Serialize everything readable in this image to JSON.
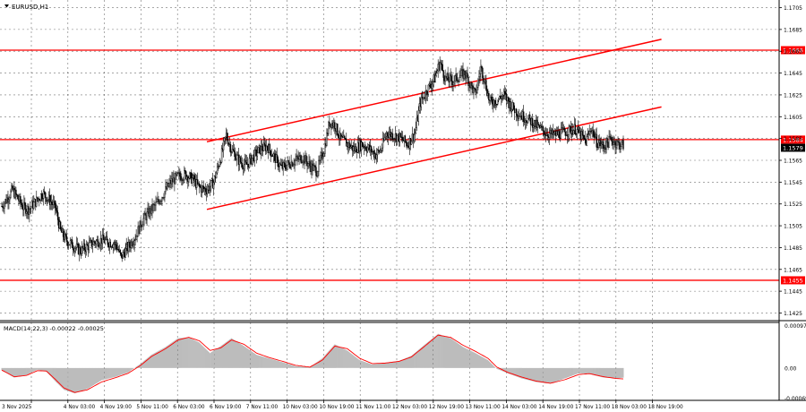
{
  "chart_data": {
    "type": "candlestick",
    "symbol": "EURUSD,H1",
    "price_axis": {
      "ticks": [
        "1.1705",
        "1.1685",
        "1.1665",
        "1.1645",
        "1.1625",
        "1.1605",
        "1.1585",
        "1.1565",
        "1.1545",
        "1.1525",
        "1.1505",
        "1.1485",
        "1.1465",
        "1.1445",
        "1.1425"
      ],
      "range": [
        1.1418,
        1.1712
      ]
    },
    "time_axis": {
      "labels": [
        "3 Nov 2025",
        "4 Nov 03:00",
        "4 Nov 19:00",
        "5 Nov 11:00",
        "6 Nov 03:00",
        "6 Nov 19:00",
        "7 Nov 11:00",
        "10 Nov 03:00",
        "10 Nov 19:00",
        "11 Nov 11:00",
        "12 Nov 03:00",
        "12 Nov 19:00",
        "13 Nov 11:00",
        "14 Nov 03:00",
        "14 Nov 19:00",
        "17 Nov 11:00",
        "18 Nov 03:00",
        "18 Nov 19:00"
      ]
    },
    "price_levels": [
      {
        "value": 1.1666,
        "label": "1.1666",
        "color": "#ff0000"
      },
      {
        "value": 1.1584,
        "label": "1.1584",
        "color": "#ff0000"
      },
      {
        "value": 1.1455,
        "label": "1.1455",
        "color": "#ff0000"
      }
    ],
    "current_price": {
      "value": 1.1579,
      "label": "1.1579"
    },
    "channel": {
      "upper": {
        "from": {
          "time": "6 Nov 19:00",
          "price": 1.1582
        },
        "to": {
          "time": "18 Nov 19:00",
          "price": 1.1676
        }
      },
      "lower": {
        "from": {
          "time": "6 Nov 19:00",
          "price": 1.152
        },
        "to": {
          "time": "18 Nov 19:00",
          "price": 1.1614
        }
      }
    },
    "close_path": [
      [
        0,
        1.1523
      ],
      [
        6,
        1.153
      ],
      [
        12,
        1.1538
      ],
      [
        18,
        1.153
      ],
      [
        24,
        1.1522
      ],
      [
        30,
        1.152
      ],
      [
        38,
        1.1527
      ],
      [
        46,
        1.1535
      ],
      [
        54,
        1.1528
      ],
      [
        60,
        1.1522
      ],
      [
        66,
        1.15
      ],
      [
        72,
        1.1492
      ],
      [
        80,
        1.1487
      ],
      [
        88,
        1.1482
      ],
      [
        96,
        1.1486
      ],
      [
        104,
        1.149
      ],
      [
        112,
        1.1492
      ],
      [
        120,
        1.149
      ],
      [
        128,
        1.1488
      ],
      [
        134,
        1.1476
      ],
      [
        142,
        1.1486
      ],
      [
        150,
        1.1495
      ],
      [
        158,
        1.151
      ],
      [
        166,
        1.1518
      ],
      [
        174,
        1.1525
      ],
      [
        182,
        1.1535
      ],
      [
        190,
        1.1545
      ],
      [
        198,
        1.155
      ],
      [
        206,
        1.1552
      ],
      [
        214,
        1.1548
      ],
      [
        222,
        1.154
      ],
      [
        230,
        1.1538
      ],
      [
        238,
        1.1545
      ],
      [
        246,
        1.1568
      ],
      [
        252,
        1.1588
      ],
      [
        258,
        1.1575
      ],
      [
        266,
        1.1565
      ],
      [
        274,
        1.156
      ],
      [
        282,
        1.1568
      ],
      [
        290,
        1.1575
      ],
      [
        298,
        1.1578
      ],
      [
        306,
        1.1568
      ],
      [
        314,
        1.1558
      ],
      [
        322,
        1.1562
      ],
      [
        330,
        1.1565
      ],
      [
        338,
        1.1568
      ],
      [
        346,
        1.156
      ],
      [
        354,
        1.1555
      ],
      [
        362,
        1.1575
      ],
      [
        368,
        1.16
      ],
      [
        374,
        1.1598
      ],
      [
        380,
        1.1585
      ],
      [
        388,
        1.158
      ],
      [
        396,
        1.1575
      ],
      [
        404,
        1.158
      ],
      [
        412,
        1.1576
      ],
      [
        420,
        1.157
      ],
      [
        426,
        1.1575
      ],
      [
        432,
        1.159
      ],
      [
        440,
        1.1588
      ],
      [
        448,
        1.1585
      ],
      [
        456,
        1.158
      ],
      [
        464,
        1.159
      ],
      [
        470,
        1.1618
      ],
      [
        478,
        1.163
      ],
      [
        486,
        1.164
      ],
      [
        492,
        1.1655
      ],
      [
        498,
        1.164
      ],
      [
        506,
        1.1638
      ],
      [
        514,
        1.1642
      ],
      [
        520,
        1.1645
      ],
      [
        526,
        1.1635
      ],
      [
        532,
        1.1625
      ],
      [
        538,
        1.165
      ],
      [
        542,
        1.164
      ],
      [
        548,
        1.1618
      ],
      [
        556,
        1.162
      ],
      [
        564,
        1.1625
      ],
      [
        572,
        1.1615
      ],
      [
        580,
        1.1608
      ],
      [
        588,
        1.1604
      ],
      [
        596,
        1.16
      ],
      [
        604,
        1.1594
      ],
      [
        612,
        1.159
      ],
      [
        620,
        1.1588
      ],
      [
        628,
        1.159
      ],
      [
        636,
        1.1592
      ],
      [
        644,
        1.1594
      ],
      [
        650,
        1.1588
      ],
      [
        656,
        1.1582
      ],
      [
        662,
        1.1595
      ],
      [
        668,
        1.1582
      ],
      [
        676,
        1.1578
      ],
      [
        684,
        1.1584
      ],
      [
        692,
        1.158
      ],
      [
        698,
        1.1579
      ]
    ],
    "macd": {
      "label": "MACD(14,22,3) -0.00022 -0.00025",
      "ticks": [
        "0.00097",
        "0.00",
        "-0.00069"
      ],
      "range": [
        -0.00074,
        0.00104
      ],
      "histogram_path": [
        [
          0,
          -5e-05
        ],
        [
          14,
          -0.00022
        ],
        [
          28,
          -0.00016
        ],
        [
          40,
          -4e-05
        ],
        [
          50,
          -8e-05
        ],
        [
          60,
          -0.0003
        ],
        [
          70,
          -0.0005
        ],
        [
          82,
          -0.00058
        ],
        [
          96,
          -0.00048
        ],
        [
          112,
          -0.00028
        ],
        [
          128,
          -0.0002
        ],
        [
          142,
          -0.0001
        ],
        [
          156,
          0.0001
        ],
        [
          168,
          0.0003
        ],
        [
          184,
          0.00048
        ],
        [
          198,
          0.00068
        ],
        [
          210,
          0.0007
        ],
        [
          222,
          0.00058
        ],
        [
          234,
          0.00034
        ],
        [
          246,
          0.0005
        ],
        [
          258,
          0.00068
        ],
        [
          272,
          0.0005
        ],
        [
          286,
          0.0003
        ],
        [
          300,
          0.00022
        ],
        [
          314,
          0.00014
        ],
        [
          330,
          4e-05
        ],
        [
          346,
          2e-05
        ],
        [
          360,
          0.00022
        ],
        [
          374,
          0.00054
        ],
        [
          388,
          0.0004
        ],
        [
          402,
          0.00018
        ],
        [
          416,
          8e-05
        ],
        [
          430,
          0.00012
        ],
        [
          446,
          0.00016
        ],
        [
          460,
          0.00028
        ],
        [
          474,
          0.00052
        ],
        [
          490,
          0.00078
        ],
        [
          504,
          0.00068
        ],
        [
          518,
          0.00048
        ],
        [
          532,
          0.00034
        ],
        [
          546,
          0.00018
        ],
        [
          556,
          -2e-05
        ],
        [
          568,
          -0.00012
        ],
        [
          584,
          -0.00024
        ],
        [
          600,
          -0.00032
        ],
        [
          616,
          -0.00036
        ],
        [
          632,
          -0.00024
        ],
        [
          648,
          -0.00012
        ],
        [
          660,
          -0.00014
        ],
        [
          676,
          -0.00022
        ],
        [
          690,
          -0.00024
        ],
        [
          698,
          -0.00022
        ]
      ],
      "signal_path": [
        [
          0,
          -5e-05
        ],
        [
          14,
          -0.0002
        ],
        [
          28,
          -0.00017
        ],
        [
          40,
          -6e-05
        ],
        [
          50,
          -7e-05
        ],
        [
          60,
          -0.00026
        ],
        [
          70,
          -0.00046
        ],
        [
          82,
          -0.00056
        ],
        [
          96,
          -0.0005
        ],
        [
          112,
          -0.00032
        ],
        [
          128,
          -0.00022
        ],
        [
          142,
          -0.00012
        ],
        [
          156,
          6e-05
        ],
        [
          168,
          0.00026
        ],
        [
          184,
          0.00044
        ],
        [
          198,
          0.00064
        ],
        [
          210,
          0.0007
        ],
        [
          222,
          0.00062
        ],
        [
          234,
          0.0004
        ],
        [
          246,
          0.00046
        ],
        [
          258,
          0.00064
        ],
        [
          272,
          0.00054
        ],
        [
          286,
          0.00034
        ],
        [
          300,
          0.00024
        ],
        [
          314,
          0.00016
        ],
        [
          330,
          6e-05
        ],
        [
          346,
          2e-05
        ],
        [
          360,
          0.00018
        ],
        [
          374,
          0.0005
        ],
        [
          388,
          0.00044
        ],
        [
          402,
          0.00022
        ],
        [
          416,
          0.0001
        ],
        [
          430,
          0.00011
        ],
        [
          446,
          0.00015
        ],
        [
          460,
          0.00025
        ],
        [
          474,
          0.00048
        ],
        [
          490,
          0.00075
        ],
        [
          504,
          0.0007
        ],
        [
          518,
          0.00052
        ],
        [
          532,
          0.00038
        ],
        [
          546,
          0.00022
        ],
        [
          556,
          2e-05
        ],
        [
          568,
          -0.0001
        ],
        [
          584,
          -0.00021
        ],
        [
          600,
          -0.0003
        ],
        [
          616,
          -0.00035
        ],
        [
          632,
          -0.00027
        ],
        [
          648,
          -0.00015
        ],
        [
          660,
          -0.00013
        ],
        [
          676,
          -0.0002
        ],
        [
          690,
          -0.00024
        ],
        [
          698,
          -0.00025
        ]
      ]
    },
    "colors": {
      "level_line": "#ff0000",
      "channel_line": "#ff0000",
      "candle": "#000000",
      "histogram": "#a0a0a0",
      "signal": "#ff0000",
      "grid": "#000000"
    },
    "grid": true
  }
}
